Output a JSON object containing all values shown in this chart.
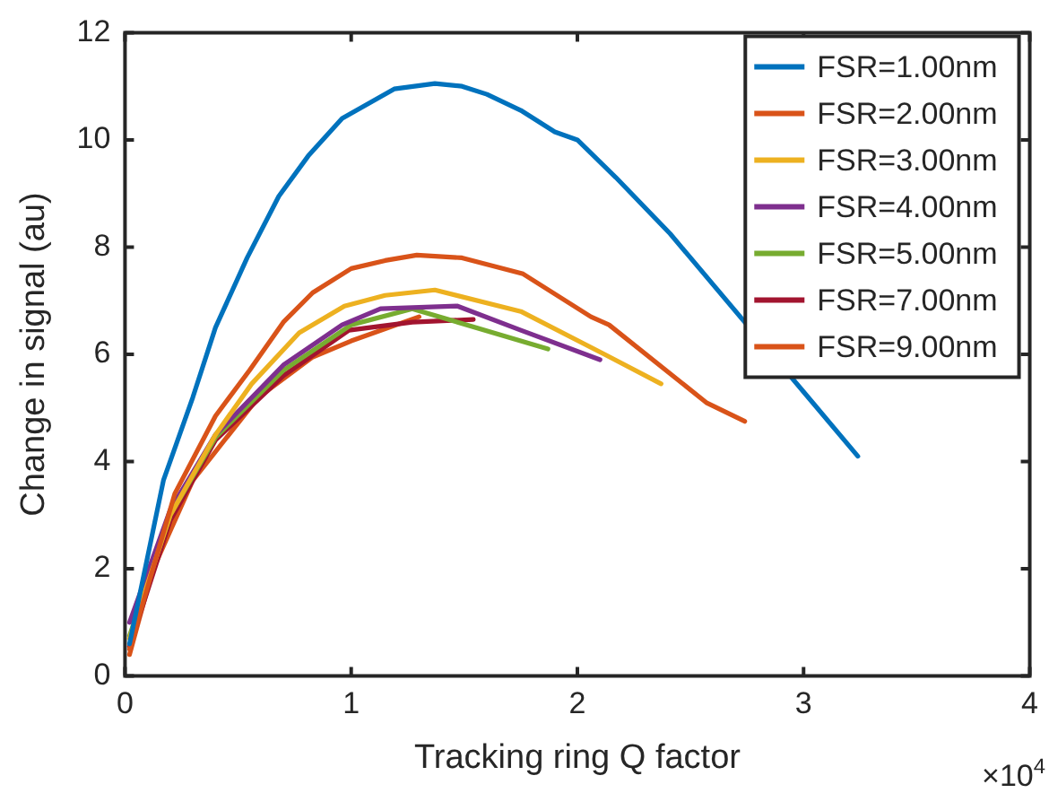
{
  "chart_data": {
    "type": "line",
    "xlabel": "Tracking ring Q factor",
    "ylabel": "Change in signal (au)",
    "xlim": [
      0,
      4
    ],
    "xticks": [
      0,
      1,
      2,
      3,
      4
    ],
    "ylim": [
      0,
      12
    ],
    "yticks": [
      0,
      2,
      4,
      6,
      8,
      10,
      12
    ],
    "annotations": [
      "×10$^{4}$"
    ],
    "legend": "top right",
    "grid": false,
    "marker": "none",
    "line_style": "solid",
    "series": [
      {
        "name": "FSR=1.00nm",
        "color": "#0072bd",
        "x": [
          0.02,
          0.17,
          0.3,
          0.4,
          0.54,
          0.68,
          0.81,
          0.96,
          1.19,
          1.37,
          1.49,
          1.6,
          1.75,
          1.9,
          2.0,
          2.17,
          2.41,
          3.04,
          3.24
        ],
        "values": [
          0.6,
          3.65,
          5.2,
          6.5,
          7.8,
          8.95,
          9.7,
          10.4,
          10.95,
          11.05,
          11.0,
          10.85,
          10.55,
          10.15,
          10.0,
          9.3,
          8.25,
          5.1,
          4.1
        ]
      },
      {
        "name": "FSR=2.00nm",
        "color": "#d95319",
        "x": [
          0.02,
          0.22,
          0.4,
          0.55,
          0.7,
          0.83,
          1.0,
          1.15,
          1.29,
          1.49,
          1.76,
          2.06,
          2.14,
          2.57,
          2.74
        ],
        "values": [
          0.5,
          3.4,
          4.85,
          5.7,
          6.6,
          7.15,
          7.6,
          7.75,
          7.85,
          7.8,
          7.5,
          6.7,
          6.55,
          5.1,
          4.75
        ]
      },
      {
        "name": "FSR=3.00nm",
        "color": "#edb120",
        "x": [
          0.02,
          0.2,
          0.4,
          0.56,
          0.77,
          0.97,
          1.15,
          1.37,
          1.75,
          2.12,
          2.37
        ],
        "values": [
          0.7,
          3.0,
          4.5,
          5.45,
          6.4,
          6.9,
          7.1,
          7.2,
          6.8,
          6.0,
          5.45
        ]
      },
      {
        "name": "FSR=4.00nm",
        "color": "#7e2f8e",
        "x": [
          0.02,
          0.2,
          0.4,
          0.7,
          0.96,
          1.13,
          1.47,
          1.75,
          2.1
        ],
        "values": [
          1.0,
          3.1,
          4.5,
          5.8,
          6.55,
          6.85,
          6.9,
          6.45,
          5.9
        ]
      },
      {
        "name": "FSR=5.00nm",
        "color": "#77ac30",
        "x": [
          0.02,
          0.2,
          0.4,
          0.7,
          1.0,
          1.27,
          1.87
        ],
        "values": [
          0.75,
          3.0,
          4.45,
          5.7,
          6.55,
          6.85,
          6.1
        ]
      },
      {
        "name": "FSR=7.00nm",
        "color": "#a2142f",
        "x": [
          0.02,
          0.2,
          0.4,
          0.7,
          0.99,
          1.27,
          1.54
        ],
        "values": [
          0.55,
          2.9,
          4.4,
          5.6,
          6.45,
          6.6,
          6.65
        ]
      },
      {
        "name": "FSR=9.00nm",
        "color": "#d95319",
        "x": [
          0.02,
          0.12,
          0.3,
          0.59,
          0.83,
          1.0,
          1.3
        ],
        "values": [
          0.4,
          1.95,
          3.65,
          5.2,
          5.95,
          6.25,
          6.7
        ]
      }
    ]
  }
}
